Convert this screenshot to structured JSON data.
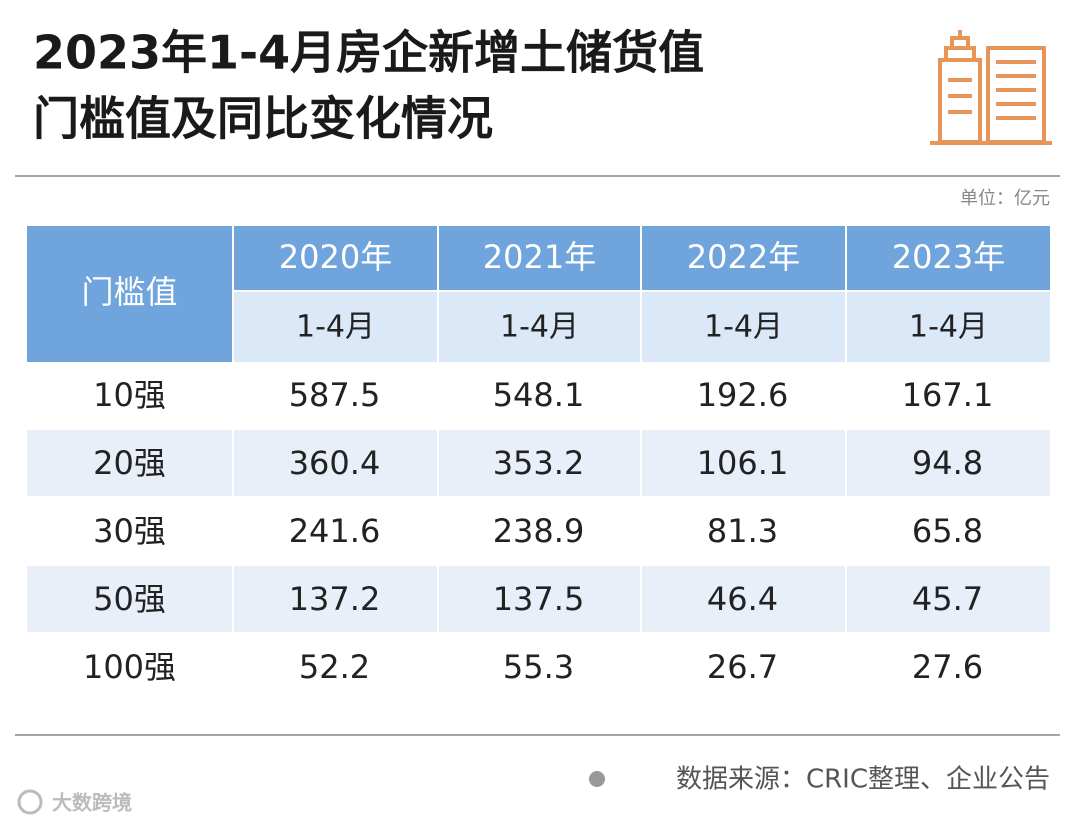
{
  "header": {
    "title_lines": [
      "2023年1-4月房企新增土储货值",
      "门槛值及同比变化情况"
    ],
    "unit": "单位：亿元"
  },
  "table": {
    "corner": "门槛值",
    "years": [
      "2020年",
      "2021年",
      "2022年",
      "2023年"
    ],
    "periods": [
      "1-4月",
      "1-4月",
      "1-4月",
      "1-4月"
    ],
    "rows": [
      [
        "10强",
        "587.5",
        "548.1",
        "192.6",
        "167.1"
      ],
      [
        "20强",
        "360.4",
        "353.2",
        "106.1",
        "94.8"
      ],
      [
        "30强",
        "241.6",
        "238.9",
        "81.3",
        "65.8"
      ],
      [
        "50强",
        "137.2",
        "137.5",
        "46.4",
        "45.7"
      ],
      [
        "100强",
        "52.2",
        "55.3",
        "26.7",
        "27.6"
      ]
    ]
  },
  "footer": {
    "source": "数据来源：CRIC整理、企业公告",
    "logo": "大数跨境"
  }
}
